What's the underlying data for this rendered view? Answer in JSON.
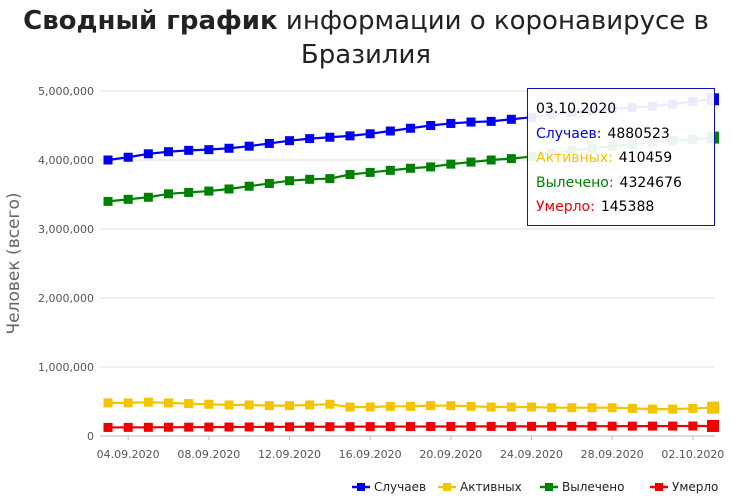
{
  "title": {
    "bold": "Сводный график",
    "rest": " информации о коронавирусе в Бразилия"
  },
  "chart_data": {
    "type": "line",
    "ylabel": "Человек (всего)",
    "xlabel": "",
    "ylim": [
      0,
      5000000
    ],
    "yticks": [
      0,
      1000000,
      2000000,
      3000000,
      4000000,
      5000000
    ],
    "ytick_labels": [
      "0",
      "1,000,000",
      "2,000,000",
      "3,000,000",
      "4,000,000",
      "5,000,000"
    ],
    "xtick_labels": [
      "04.09.2020",
      "08.09.2020",
      "12.09.2020",
      "16.09.2020",
      "20.09.2020",
      "24.09.2020",
      "28.09.2020",
      "02.10.2020"
    ],
    "x": [
      "03.09.2020",
      "04.09.2020",
      "05.09.2020",
      "06.09.2020",
      "07.09.2020",
      "08.09.2020",
      "09.09.2020",
      "10.09.2020",
      "11.09.2020",
      "12.09.2020",
      "13.09.2020",
      "14.09.2020",
      "15.09.2020",
      "16.09.2020",
      "17.09.2020",
      "18.09.2020",
      "19.09.2020",
      "20.09.2020",
      "21.09.2020",
      "22.09.2020",
      "23.09.2020",
      "24.09.2020",
      "25.09.2020",
      "26.09.2020",
      "27.09.2020",
      "28.09.2020",
      "29.09.2020",
      "30.09.2020",
      "01.10.2020",
      "02.10.2020",
      "03.10.2020"
    ],
    "grid": true,
    "legend_position": "bottom-right",
    "series": [
      {
        "name": "Случаев",
        "color": "#0000ee",
        "values": [
          4000000,
          4040000,
          4090000,
          4120000,
          4140000,
          4150000,
          4170000,
          4200000,
          4240000,
          4280000,
          4310000,
          4330000,
          4350000,
          4380000,
          4420000,
          4460000,
          4500000,
          4530000,
          4550000,
          4560000,
          4590000,
          4620000,
          4660000,
          4690000,
          4720000,
          4740000,
          4760000,
          4780000,
          4810000,
          4850000,
          4880523
        ]
      },
      {
        "name": "Активных",
        "color": "#f5c400",
        "values": [
          480000,
          480000,
          490000,
          480000,
          470000,
          460000,
          450000,
          450000,
          440000,
          440000,
          450000,
          460000,
          420000,
          420000,
          430000,
          430000,
          440000,
          440000,
          430000,
          420000,
          420000,
          420000,
          410000,
          410000,
          410000,
          410000,
          400000,
          390000,
          390000,
          400000,
          410459
        ]
      },
      {
        "name": "Вылечено",
        "color": "#008000",
        "values": [
          3400000,
          3430000,
          3460000,
          3510000,
          3530000,
          3550000,
          3580000,
          3620000,
          3660000,
          3700000,
          3720000,
          3730000,
          3790000,
          3820000,
          3850000,
          3880000,
          3900000,
          3940000,
          3970000,
          4000000,
          4020000,
          4050000,
          4100000,
          4140000,
          4170000,
          4200000,
          4230000,
          4260000,
          4280000,
          4300000,
          4324676
        ]
      },
      {
        "name": "Умерло",
        "color": "#ee0000",
        "values": [
          124000,
          125000,
          126000,
          127000,
          128000,
          129000,
          130000,
          131000,
          132000,
          133000,
          134000,
          134500,
          135000,
          135500,
          136000,
          137000,
          137500,
          138000,
          138500,
          139000,
          139500,
          140000,
          141000,
          141500,
          142000,
          142500,
          143000,
          143500,
          144000,
          144700,
          145388
        ]
      }
    ]
  },
  "tooltip": {
    "date": "03.10.2020",
    "rows": [
      {
        "label": "Случаев:",
        "value": "4880523",
        "color": "#0000ee"
      },
      {
        "label": "Активных:",
        "value": "410459",
        "color": "#f5c400"
      },
      {
        "label": "Вылечено:",
        "value": "4324676",
        "color": "#008000"
      },
      {
        "label": "Умерло:",
        "value": "145388",
        "color": "#ee0000"
      }
    ]
  }
}
